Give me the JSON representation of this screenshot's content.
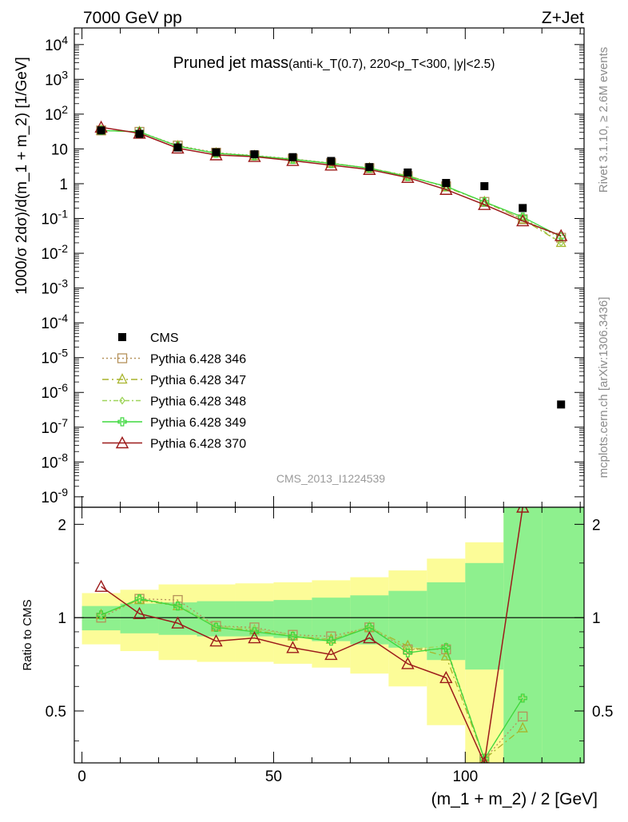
{
  "header": {
    "left": "7000 GeV pp",
    "right": "Z+Jet"
  },
  "side": {
    "rivet": "Rivet 3.1.10, ≥ 2.6M events",
    "mcplots": "mcplots.cern.ch [arXiv:1306.3436]"
  },
  "title_main": "Pruned jet mass",
  "title_sub": "(anti-k_T(0.7), 220<p_T<300, |y|<2.5)",
  "watermark": "CMS_2013_I1224539",
  "ylabel_top": "1000/σ 2dσ)/d(m_1 + m_2) [1/GeV]",
  "ylabel_bottom": "Ratio to CMS",
  "xlabel": "(m_1 + m_2) / 2 [GeV]",
  "chart_data": [
    {
      "type": "line",
      "panel": "main",
      "yscale": "log",
      "xlim": [
        -2,
        131
      ],
      "ylim": [
        5e-10,
        30000
      ],
      "x": [
        5,
        15,
        25,
        35,
        45,
        55,
        65,
        75,
        85,
        95,
        105,
        115,
        125
      ],
      "data": {
        "name": "CMS",
        "y": [
          34,
          27,
          11,
          8.0,
          7.0,
          5.8,
          4.5,
          3.0,
          2.1,
          1.05,
          0.85,
          0.2,
          4.5e-07
        ]
      },
      "series": [
        {
          "name": "Pythia 6.428 346",
          "color": "#b5915a",
          "marker": "square",
          "dash": "2,3",
          "y": [
            34,
            31,
            12.5,
            7.8,
            6.5,
            5.2,
            3.9,
            2.8,
            1.65,
            0.84,
            0.3,
            0.095,
            0.028
          ]
        },
        {
          "name": "Pythia 6.428 347",
          "color": "#a8b42c",
          "marker": "triangle",
          "dash": "8,4,2,4",
          "y": [
            34,
            31,
            12.0,
            7.5,
            6.3,
            5.0,
            3.9,
            2.8,
            1.7,
            0.79,
            0.3,
            0.095,
            0.02
          ]
        },
        {
          "name": "Pythia 6.428 348",
          "color": "#9ed45a",
          "marker": "diamond",
          "dash": "6,3,2,3",
          "y": [
            34,
            31,
            12.0,
            7.5,
            6.4,
            5.1,
            3.8,
            2.8,
            1.65,
            0.84,
            0.3,
            0.11,
            0.02
          ]
        },
        {
          "name": "Pythia 6.428 349",
          "color": "#3ed83e",
          "marker": "plus",
          "dash": "",
          "y": [
            34,
            31,
            12.0,
            7.5,
            6.3,
            5.0,
            3.8,
            2.8,
            1.6,
            0.84,
            0.3,
            0.11,
            0.03
          ]
        },
        {
          "name": "Pythia 6.428 370",
          "color": "#9c1a1a",
          "marker": "triangle-open",
          "dash": "",
          "y": [
            42,
            28,
            10.5,
            6.7,
            6.0,
            4.6,
            3.4,
            2.55,
            1.5,
            0.68,
            0.25,
            0.085,
            0.032
          ]
        }
      ],
      "yticks": [
        "10^-9",
        "10^-8",
        "10^-7",
        "10^-6",
        "10^-5",
        "10^-4",
        "10^-3",
        "10^-2",
        "10^-1",
        "1",
        "10",
        "10^2",
        "10^3",
        "10^4"
      ]
    },
    {
      "type": "line",
      "panel": "ratio",
      "xlim": [
        -2,
        131
      ],
      "ylim": [
        0.34,
        2.27
      ],
      "x": [
        5,
        15,
        25,
        35,
        45,
        55,
        65,
        75,
        85,
        95,
        105,
        115
      ],
      "bands": {
        "edges": [
          0,
          10,
          20,
          30,
          40,
          50,
          60,
          70,
          80,
          90,
          100,
          110,
          120,
          131
        ],
        "inner_color": "#8ef08e",
        "outer_color": "#fcfc98",
        "inner": [
          [
            0.91,
            1.09
          ],
          [
            0.89,
            1.11
          ],
          [
            0.88,
            1.12
          ],
          [
            0.87,
            1.13
          ],
          [
            0.87,
            1.13
          ],
          [
            0.86,
            1.14
          ],
          [
            0.84,
            1.16
          ],
          [
            0.82,
            1.18
          ],
          [
            0.8,
            1.22
          ],
          [
            0.73,
            1.3
          ],
          [
            0.68,
            1.5
          ],
          [
            0.34,
            2.27
          ],
          [
            0.34,
            2.27
          ]
        ],
        "outer": [
          [
            0.82,
            1.2
          ],
          [
            0.78,
            1.23
          ],
          [
            0.73,
            1.28
          ],
          [
            0.72,
            1.28
          ],
          [
            0.72,
            1.29
          ],
          [
            0.71,
            1.3
          ],
          [
            0.69,
            1.32
          ],
          [
            0.66,
            1.35
          ],
          [
            0.6,
            1.42
          ],
          [
            0.45,
            1.55
          ],
          [
            0.34,
            1.75
          ],
          [
            0.34,
            2.27
          ],
          [
            0.34,
            2.27
          ]
        ]
      },
      "series": [
        {
          "name": "Pythia 6.428 346",
          "color": "#b5915a",
          "marker": "square",
          "dash": "2,3",
          "y": [
            1.0,
            1.15,
            1.14,
            0.94,
            0.93,
            0.88,
            0.87,
            0.93,
            0.79,
            0.79,
            0.35,
            0.48
          ]
        },
        {
          "name": "Pythia 6.428 347",
          "color": "#a8b42c",
          "marker": "triangle",
          "dash": "8,4,2,4",
          "y": [
            1.02,
            1.14,
            1.09,
            0.93,
            0.91,
            0.87,
            0.85,
            0.93,
            0.81,
            0.75,
            0.35,
            0.44
          ]
        },
        {
          "name": "Pythia 6.428 348",
          "color": "#9ed45a",
          "marker": "diamond",
          "dash": "6,3,2,3",
          "y": [
            1.02,
            1.15,
            1.1,
            0.94,
            0.92,
            0.88,
            0.85,
            0.94,
            0.79,
            0.81,
            0.35,
            0.55
          ]
        },
        {
          "name": "Pythia 6.428 349",
          "color": "#3ed83e",
          "marker": "plus",
          "dash": "",
          "y": [
            1.02,
            1.15,
            1.09,
            0.93,
            0.9,
            0.87,
            0.84,
            0.93,
            0.77,
            0.8,
            0.35,
            0.55
          ]
        },
        {
          "name": "Pythia 6.428 370",
          "color": "#9c1a1a",
          "marker": "triangle-open",
          "dash": "",
          "y": [
            1.26,
            1.03,
            0.96,
            0.84,
            0.86,
            0.8,
            0.76,
            0.86,
            0.71,
            0.64,
            0.34,
            2.27
          ]
        }
      ],
      "yticks": [
        0.5,
        1,
        2
      ],
      "xticks": [
        0,
        50,
        100
      ]
    }
  ]
}
